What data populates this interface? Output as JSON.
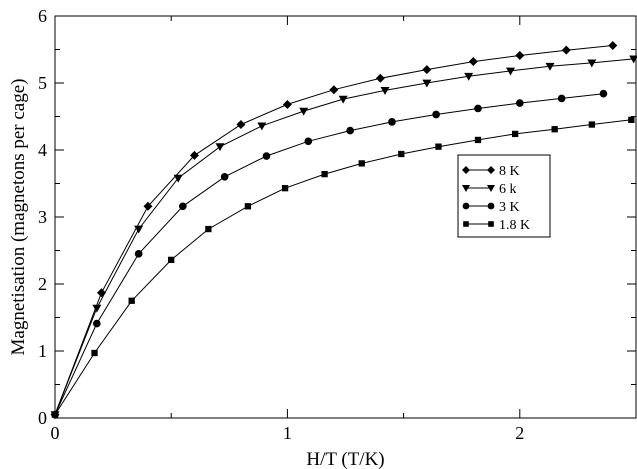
{
  "chart_data": {
    "type": "line",
    "title": "",
    "xlabel": "H/T (T/K)",
    "ylabel": "Magnetisation (magnetons per cage)",
    "xlim": [
      0,
      2.5
    ],
    "ylim": [
      0,
      6
    ],
    "x_ticks": [
      0,
      1,
      2
    ],
    "x_tick_labels": [
      "0",
      "1",
      "2"
    ],
    "y_ticks": [
      0,
      1,
      2,
      3,
      4,
      5,
      6
    ],
    "y_tick_labels": [
      "0",
      "1",
      "2",
      "3",
      "4",
      "5",
      "6"
    ],
    "grid": false,
    "legend_position": "middle-right",
    "series": [
      {
        "name": "8 K",
        "marker": "diamond",
        "x": [
          0,
          0.2,
          0.4,
          0.6,
          0.8,
          1.0,
          1.2,
          1.4,
          1.6,
          1.8,
          2.0,
          2.2,
          2.4
        ],
        "y": [
          0.05,
          1.87,
          3.16,
          3.92,
          4.38,
          4.68,
          4.9,
          5.07,
          5.2,
          5.32,
          5.41,
          5.49,
          5.56
        ]
      },
      {
        "name": "6 k",
        "marker": "triangle-down",
        "x": [
          0,
          0.18,
          0.36,
          0.53,
          0.71,
          0.89,
          1.07,
          1.24,
          1.42,
          1.6,
          1.78,
          1.96,
          2.13,
          2.31,
          2.49
        ],
        "y": [
          0.05,
          1.64,
          2.82,
          3.58,
          4.05,
          4.36,
          4.58,
          4.76,
          4.89,
          5.0,
          5.1,
          5.18,
          5.25,
          5.3,
          5.36
        ]
      },
      {
        "name": "3 K",
        "marker": "circle",
        "x": [
          0,
          0.18,
          0.36,
          0.55,
          0.73,
          0.91,
          1.09,
          1.27,
          1.45,
          1.64,
          1.82,
          2.0,
          2.18,
          2.36
        ],
        "y": [
          0.05,
          1.41,
          2.45,
          3.16,
          3.6,
          3.91,
          4.13,
          4.29,
          4.42,
          4.53,
          4.62,
          4.7,
          4.77,
          4.84
        ]
      },
      {
        "name": "1.8 K",
        "marker": "square",
        "x": [
          0,
          0.17,
          0.33,
          0.5,
          0.66,
          0.83,
          0.99,
          1.16,
          1.32,
          1.49,
          1.65,
          1.82,
          1.98,
          2.15,
          2.31,
          2.48
        ],
        "y": [
          0.05,
          0.97,
          1.75,
          2.36,
          2.82,
          3.16,
          3.43,
          3.64,
          3.8,
          3.94,
          4.05,
          4.15,
          4.24,
          4.31,
          4.38,
          4.45
        ]
      }
    ]
  }
}
